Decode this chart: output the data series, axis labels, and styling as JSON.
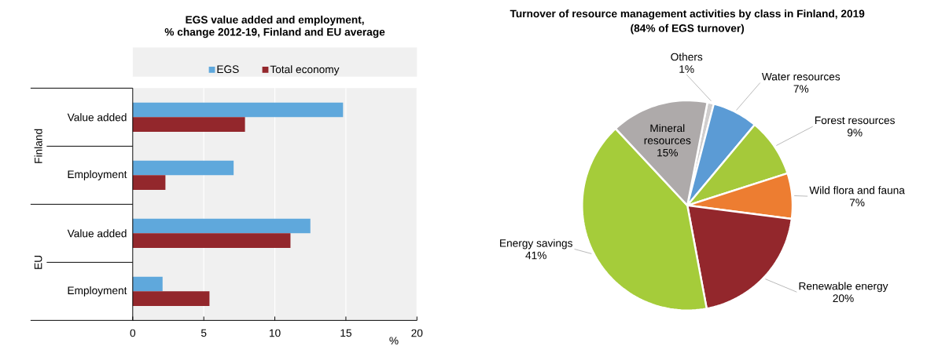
{
  "chart_data": [
    {
      "type": "bar",
      "orientation": "horizontal",
      "title": "EGS value added and employment,",
      "subtitle": "% change 2012-19, Finland and EU average",
      "categories": [
        "Value added",
        "Employment",
        "Value added",
        "Employment"
      ],
      "series": [
        {
          "name": "EGS",
          "color": "#5fa8dc",
          "values": [
            14.8,
            7.1,
            12.5,
            2.1
          ]
        },
        {
          "name": "Total economy",
          "color": "#93272c",
          "values": [
            7.9,
            2.3,
            11.1,
            5.4
          ]
        }
      ],
      "xlabel": "%",
      "xlim": [
        0,
        20
      ],
      "xticks": [
        0,
        5,
        10,
        15,
        20
      ],
      "grid": "x",
      "legend": "top",
      "annotations": [
        "Finland",
        "EU"
      ]
    },
    {
      "type": "pie",
      "title": "Turnover of resource management activities by class in Finland, 2019",
      "subtitle": "(84% of EGS turnover)",
      "categories": [
        "Others",
        "Water resources",
        "Forest resources",
        "Wild flora and fauna",
        "Renewable energy",
        "Energy savings",
        "Mineral resources"
      ],
      "values": [
        1,
        7,
        9,
        7,
        20,
        41,
        15
      ],
      "colors": [
        "#d0cece",
        "#5b9bd5",
        "#a5c93a",
        "#ed7d31",
        "#93272c",
        "#a5cc3a",
        "#aeaaaa"
      ],
      "value_labels": [
        "1%",
        "7%",
        "9%",
        "7%",
        "20%",
        "41%",
        "15%"
      ]
    }
  ]
}
